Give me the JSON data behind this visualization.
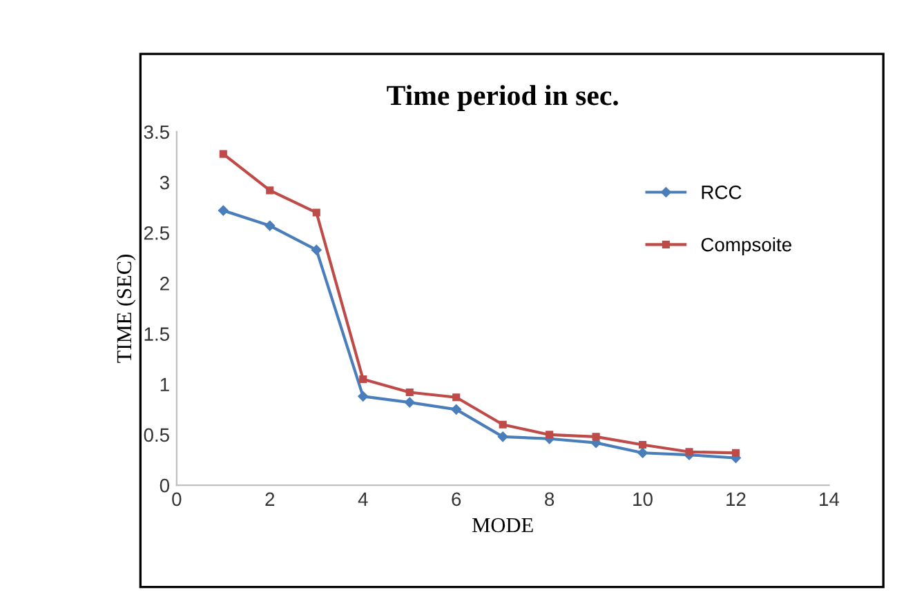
{
  "chart_data": {
    "type": "line",
    "title": "Time period in sec.",
    "xlabel": "MODE",
    "ylabel": "TIME (SEC)",
    "x": [
      1,
      2,
      3,
      4,
      5,
      6,
      7,
      8,
      9,
      10,
      11,
      12
    ],
    "series": [
      {
        "name": "RCC",
        "color": "#4a7ebb",
        "marker": "diamond",
        "values": [
          2.72,
          2.57,
          2.33,
          0.88,
          0.82,
          0.75,
          0.48,
          0.46,
          0.42,
          0.32,
          0.3,
          0.27
        ]
      },
      {
        "name": "Compsoite",
        "color": "#be4b48",
        "marker": "square",
        "values": [
          3.28,
          2.92,
          2.7,
          1.05,
          0.92,
          0.87,
          0.6,
          0.5,
          0.48,
          0.4,
          0.33,
          0.32
        ]
      }
    ],
    "xlim": [
      0,
      14
    ],
    "xticks": [
      0,
      2,
      4,
      6,
      8,
      10,
      12,
      14
    ],
    "ylim": [
      0,
      3.5
    ],
    "yticks": [
      0,
      0.5,
      1,
      1.5,
      2,
      2.5,
      3,
      3.5
    ],
    "grid": false,
    "legend": "right",
    "line_style": "solid"
  }
}
